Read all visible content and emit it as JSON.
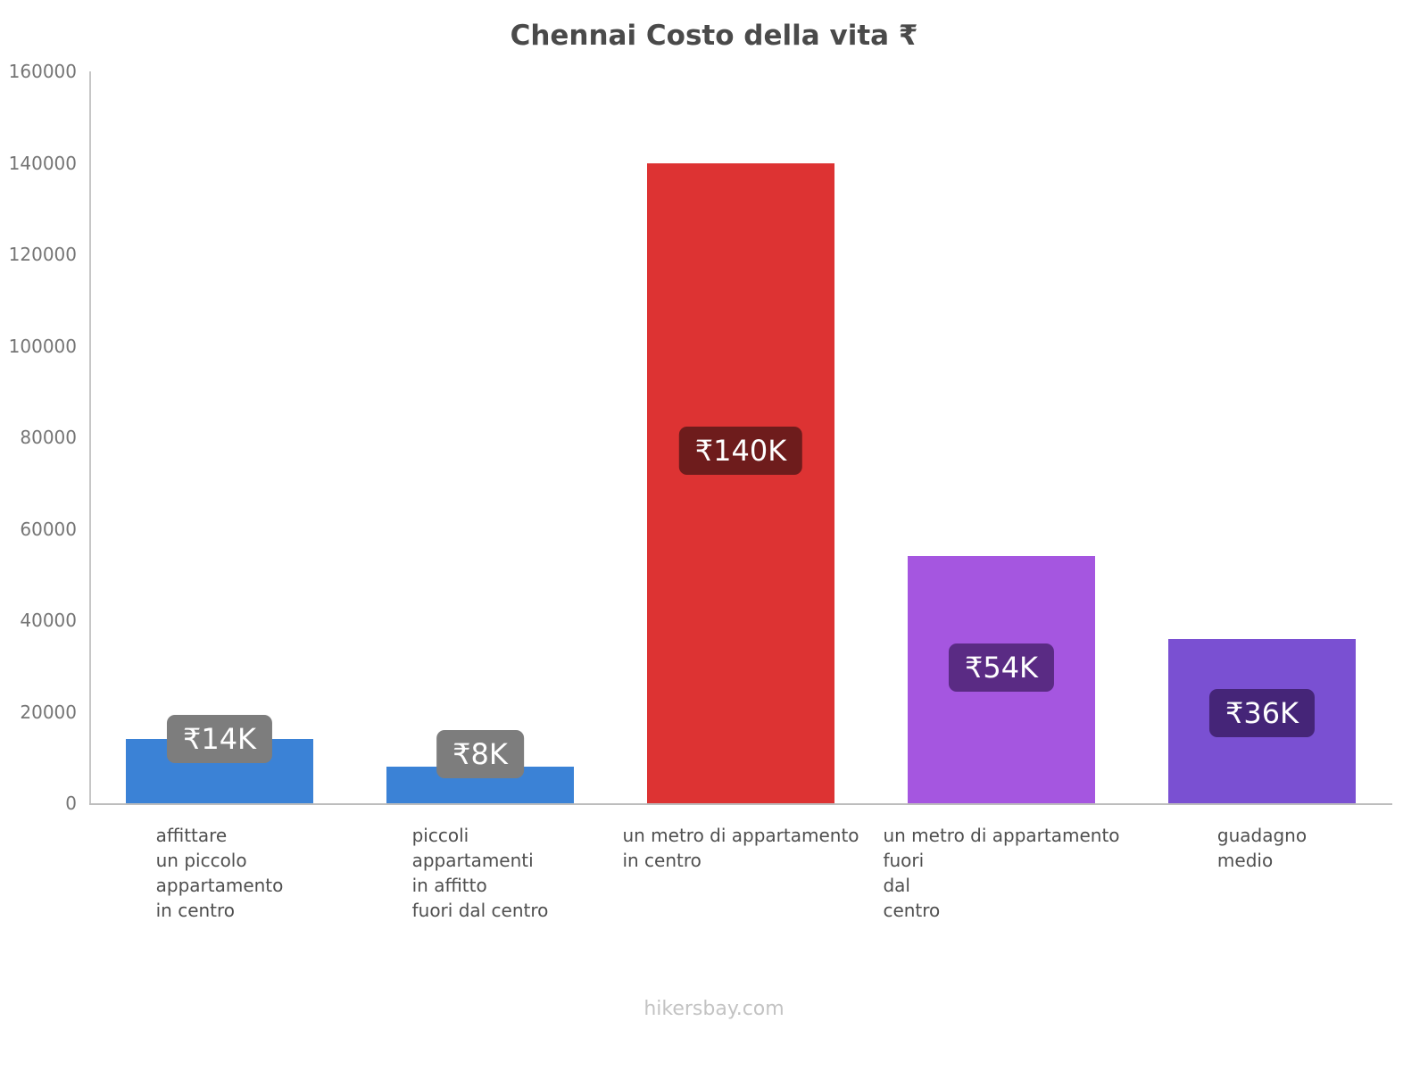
{
  "title": "Chennai Costo della vita ₹",
  "footer": "hikersbay.com",
  "chart_data": {
    "type": "bar",
    "title": "Chennai Costo della vita ₹",
    "xlabel": "",
    "ylabel": "",
    "ylim": [
      0,
      160000
    ],
    "yticks": [
      0,
      20000,
      40000,
      60000,
      80000,
      100000,
      120000,
      140000,
      160000
    ],
    "grid": false,
    "legend": false,
    "currency_symbol": "₹",
    "categories": [
      "affittare un piccolo appartamento in centro",
      "piccoli appartamenti in affitto fuori dal centro",
      "un metro di appartamento in centro",
      "un metro di appartamento fuori dal centro",
      "guadagno medio"
    ],
    "category_lines": [
      [
        "affittare",
        "un piccolo",
        "appartamento",
        "in centro"
      ],
      [
        "piccoli",
        "appartamenti",
        "in affitto",
        "fuori dal centro"
      ],
      [
        "un metro di appartamento",
        "in centro"
      ],
      [
        "un metro di appartamento",
        "fuori",
        "dal",
        "centro"
      ],
      [
        "guadagno",
        "medio"
      ]
    ],
    "values": [
      14000,
      8000,
      140000,
      54000,
      36000
    ],
    "value_labels": [
      "₹14K",
      "₹8K",
      "₹140K",
      "₹54K",
      "₹36K"
    ],
    "bar_colors": [
      "#3b82d6",
      "#3b82d6",
      "#dd3333",
      "#a556e0",
      "#7a50d2"
    ],
    "label_box_colors": [
      "#7d7d7d",
      "#7d7d7d",
      "#6e1c1c",
      "#5a2b84",
      "#452578"
    ]
  }
}
